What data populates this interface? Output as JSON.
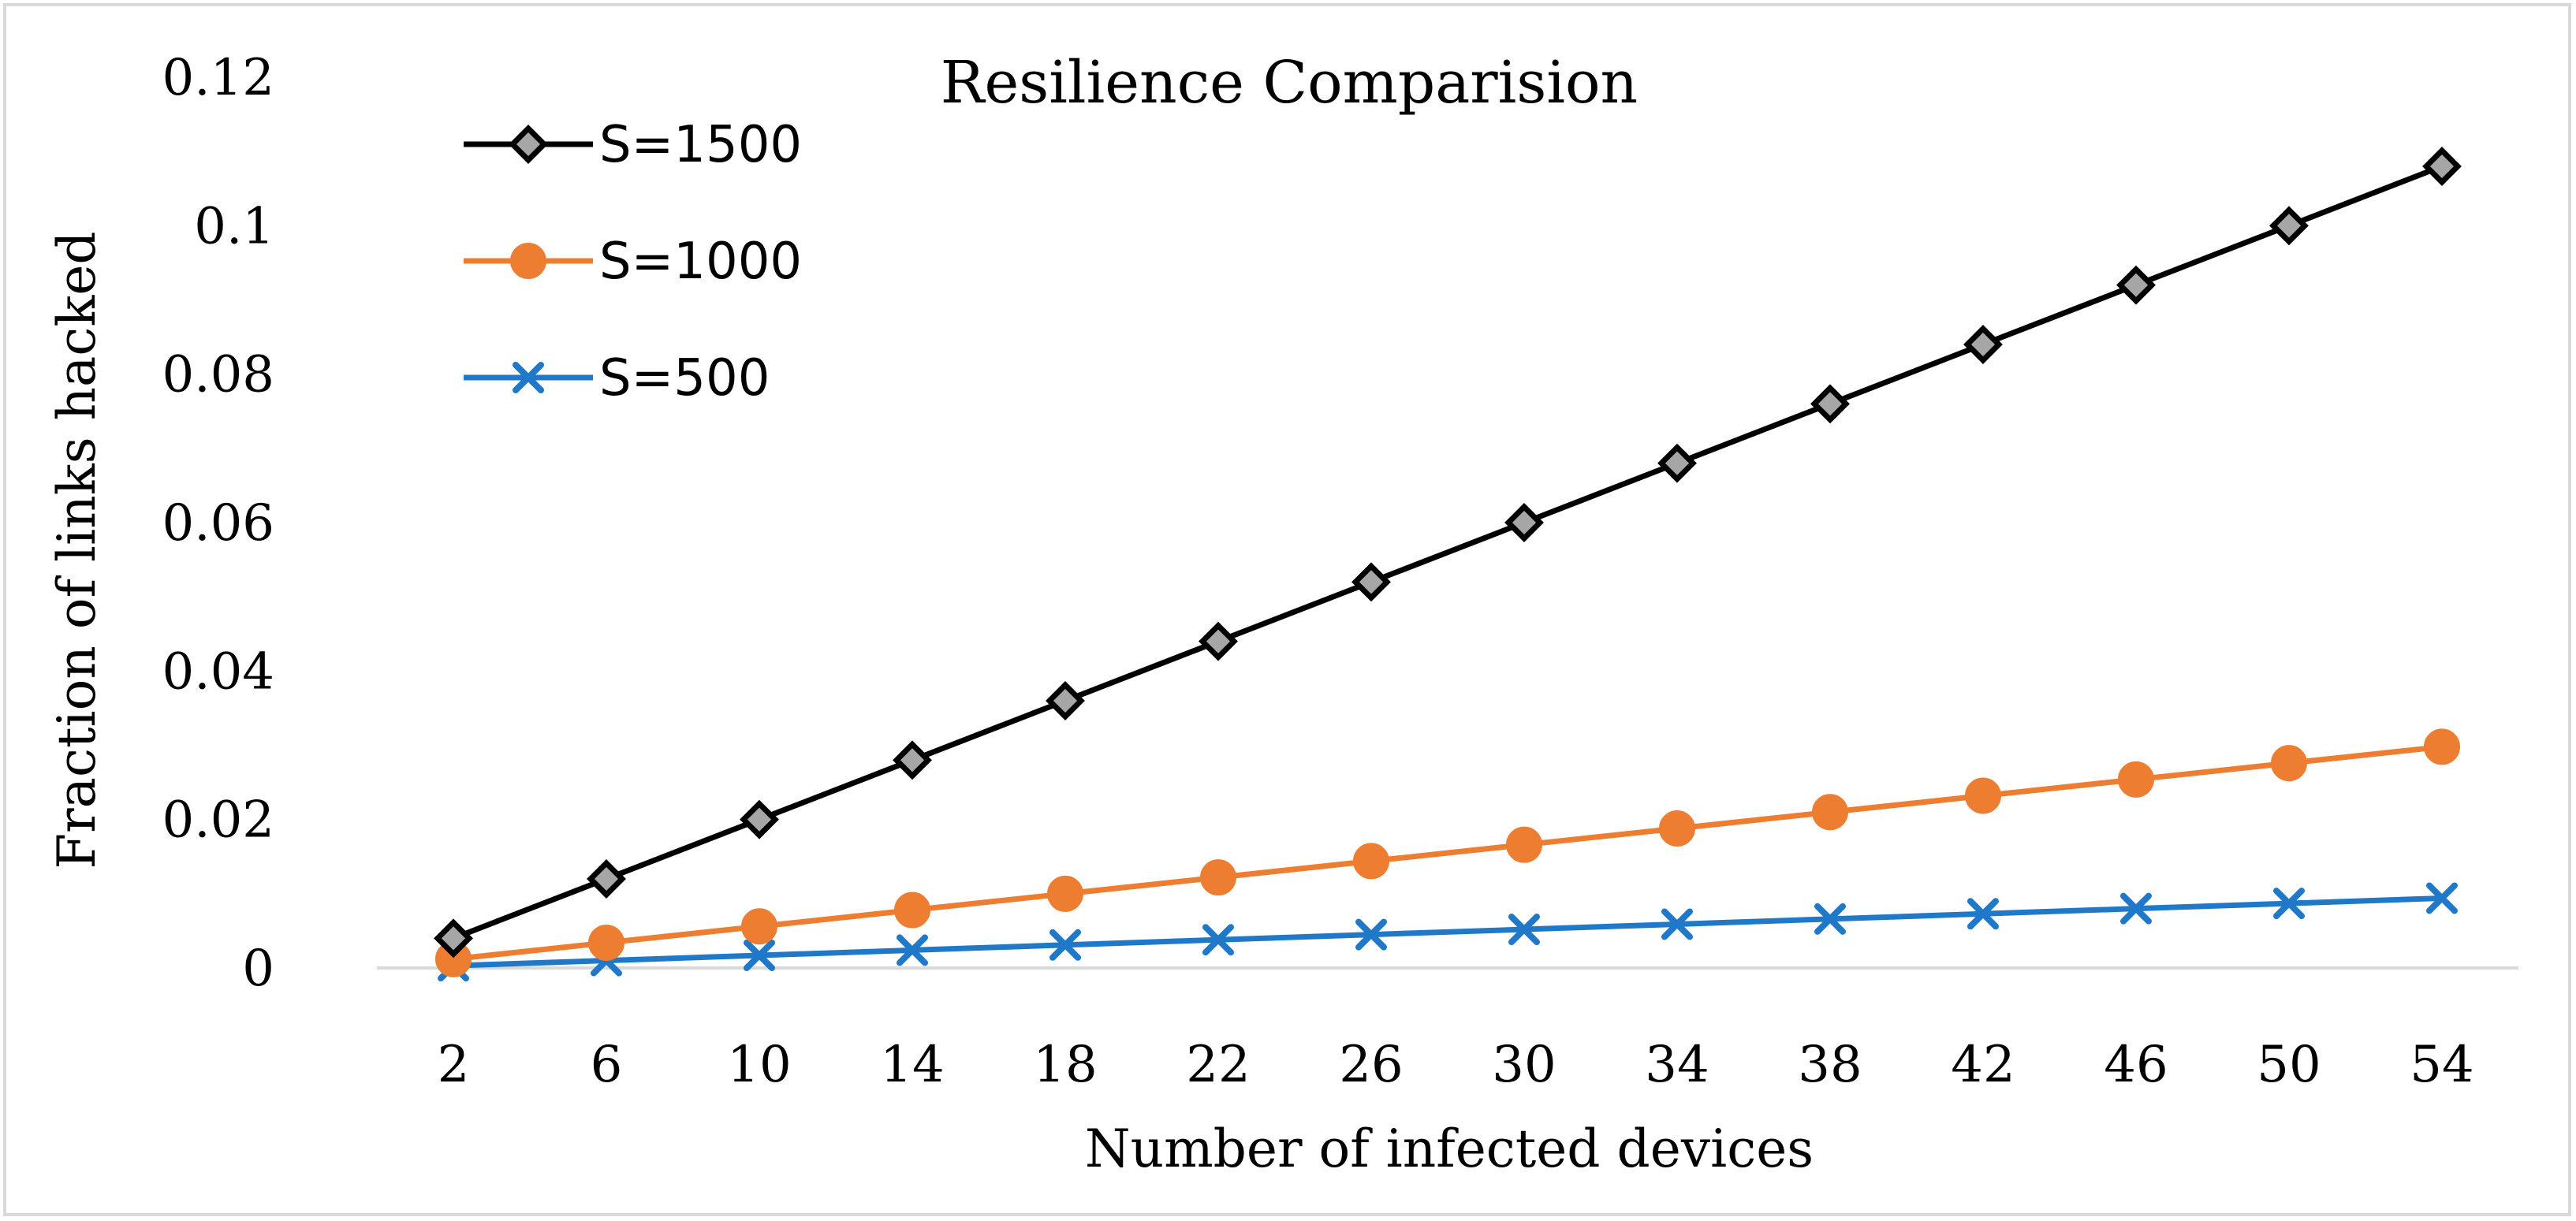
{
  "chart_data": {
    "type": "line",
    "title": "Resilience Comparision",
    "xlabel": "Number of infected devices",
    "ylabel": "Fraction of links hacked",
    "x": [
      2,
      6,
      10,
      14,
      18,
      22,
      26,
      30,
      34,
      38,
      42,
      46,
      50,
      54
    ],
    "x_tick_labels": [
      "2",
      "6",
      "10",
      "14",
      "18",
      "22",
      "26",
      "30",
      "34",
      "38",
      "42",
      "46",
      "50",
      "54"
    ],
    "ylim": [
      0,
      0.12
    ],
    "y_ticks": [
      0,
      0.02,
      0.04,
      0.06,
      0.08,
      0.1,
      0.12
    ],
    "y_tick_labels": [
      "0",
      "0.02",
      "0.04",
      "0.06",
      "0.08",
      "0.1",
      "0.12"
    ],
    "grid": false,
    "legend_position": "top-left",
    "series": [
      {
        "name": "S=1500",
        "color": "#000000",
        "marker": "diamond",
        "marker_fill": "#a6a6a6",
        "values": [
          0.004,
          0.012,
          0.02,
          0.028,
          0.036,
          0.044,
          0.052,
          0.06,
          0.068,
          0.076,
          0.084,
          0.092,
          0.1,
          0.108
        ]
      },
      {
        "name": "S=1000",
        "color": "#ed7d31",
        "marker": "circle",
        "marker_fill": "#ed7d31",
        "values": [
          0.0012,
          0.0034,
          0.0056,
          0.0078,
          0.01,
          0.0122,
          0.0144,
          0.0166,
          0.0188,
          0.021,
          0.0232,
          0.0254,
          0.0276,
          0.0298
        ]
      },
      {
        "name": "S=500",
        "color": "#1f78c8",
        "marker": "x",
        "marker_fill": "#1f78c8",
        "values": [
          0.0003,
          0.001,
          0.0017,
          0.0024,
          0.0031,
          0.0038,
          0.0045,
          0.0052,
          0.0059,
          0.0066,
          0.0073,
          0.008,
          0.0087,
          0.0094
        ]
      }
    ]
  }
}
